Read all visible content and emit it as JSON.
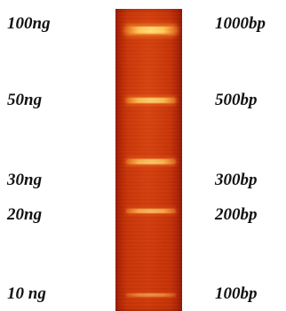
{
  "mass_labels": [
    "100ng",
    "50ng",
    "30ng",
    "20ng",
    "10 ng"
  ],
  "size_labels": [
    "1000bp",
    "500bp",
    "300bp",
    "200bp",
    "100bp"
  ],
  "colors": {
    "gel": "#c83508",
    "band": "#ffd27a",
    "text": "#111111"
  }
}
